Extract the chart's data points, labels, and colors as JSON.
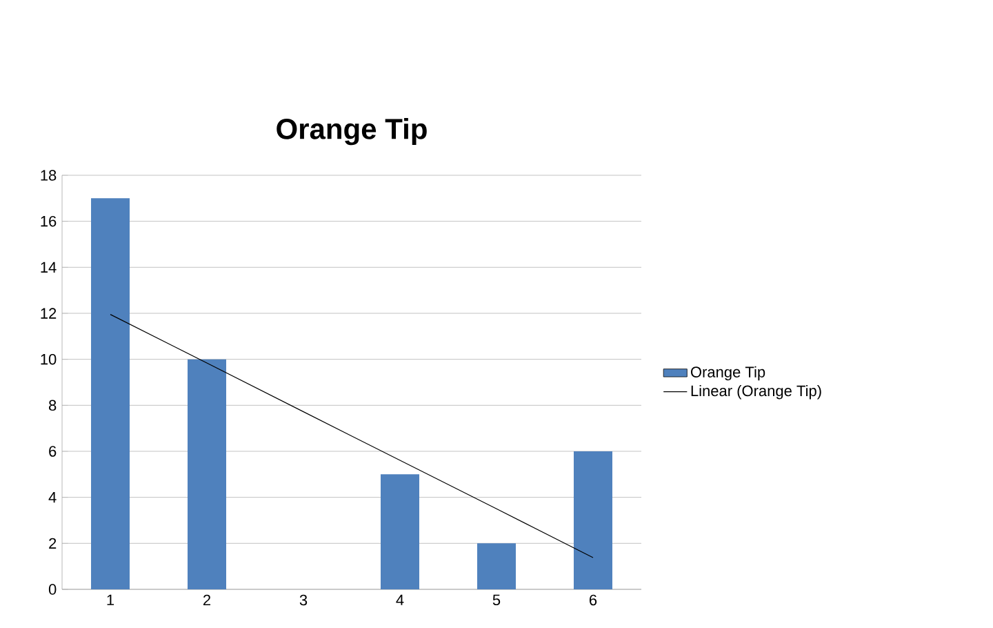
{
  "chart_data": {
    "type": "bar",
    "title": "Orange Tip",
    "categories": [
      "1",
      "2",
      "3",
      "4",
      "5",
      "6"
    ],
    "series": [
      {
        "name": "Orange Tip",
        "color": "#4f81bd",
        "values": [
          17,
          10,
          0,
          5,
          2,
          6
        ]
      },
      {
        "name": "Linear (Orange Tip)",
        "type": "line",
        "color": "#000000",
        "values": [
          11.95,
          9.84,
          7.72,
          5.61,
          3.5,
          1.38
        ]
      }
    ],
    "ylim": [
      0,
      18
    ],
    "yticks": [
      0,
      2,
      4,
      6,
      8,
      10,
      12,
      14,
      16,
      18
    ],
    "grid": "y",
    "legend": "right"
  }
}
